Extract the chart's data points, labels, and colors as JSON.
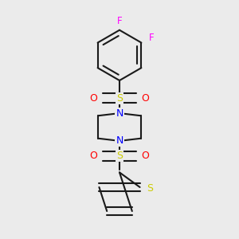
{
  "bg_color": "#ebebeb",
  "bond_color": "#1a1a1a",
  "N_color": "#0000ff",
  "O_color": "#ff0000",
  "S_color": "#cccc00",
  "F_color": "#ff00ff",
  "line_width": 1.5,
  "fig_w": 3.0,
  "fig_h": 3.0,
  "dpi": 100,
  "xlim": [
    0.15,
    0.85
  ],
  "ylim": [
    0.03,
    0.97
  ]
}
